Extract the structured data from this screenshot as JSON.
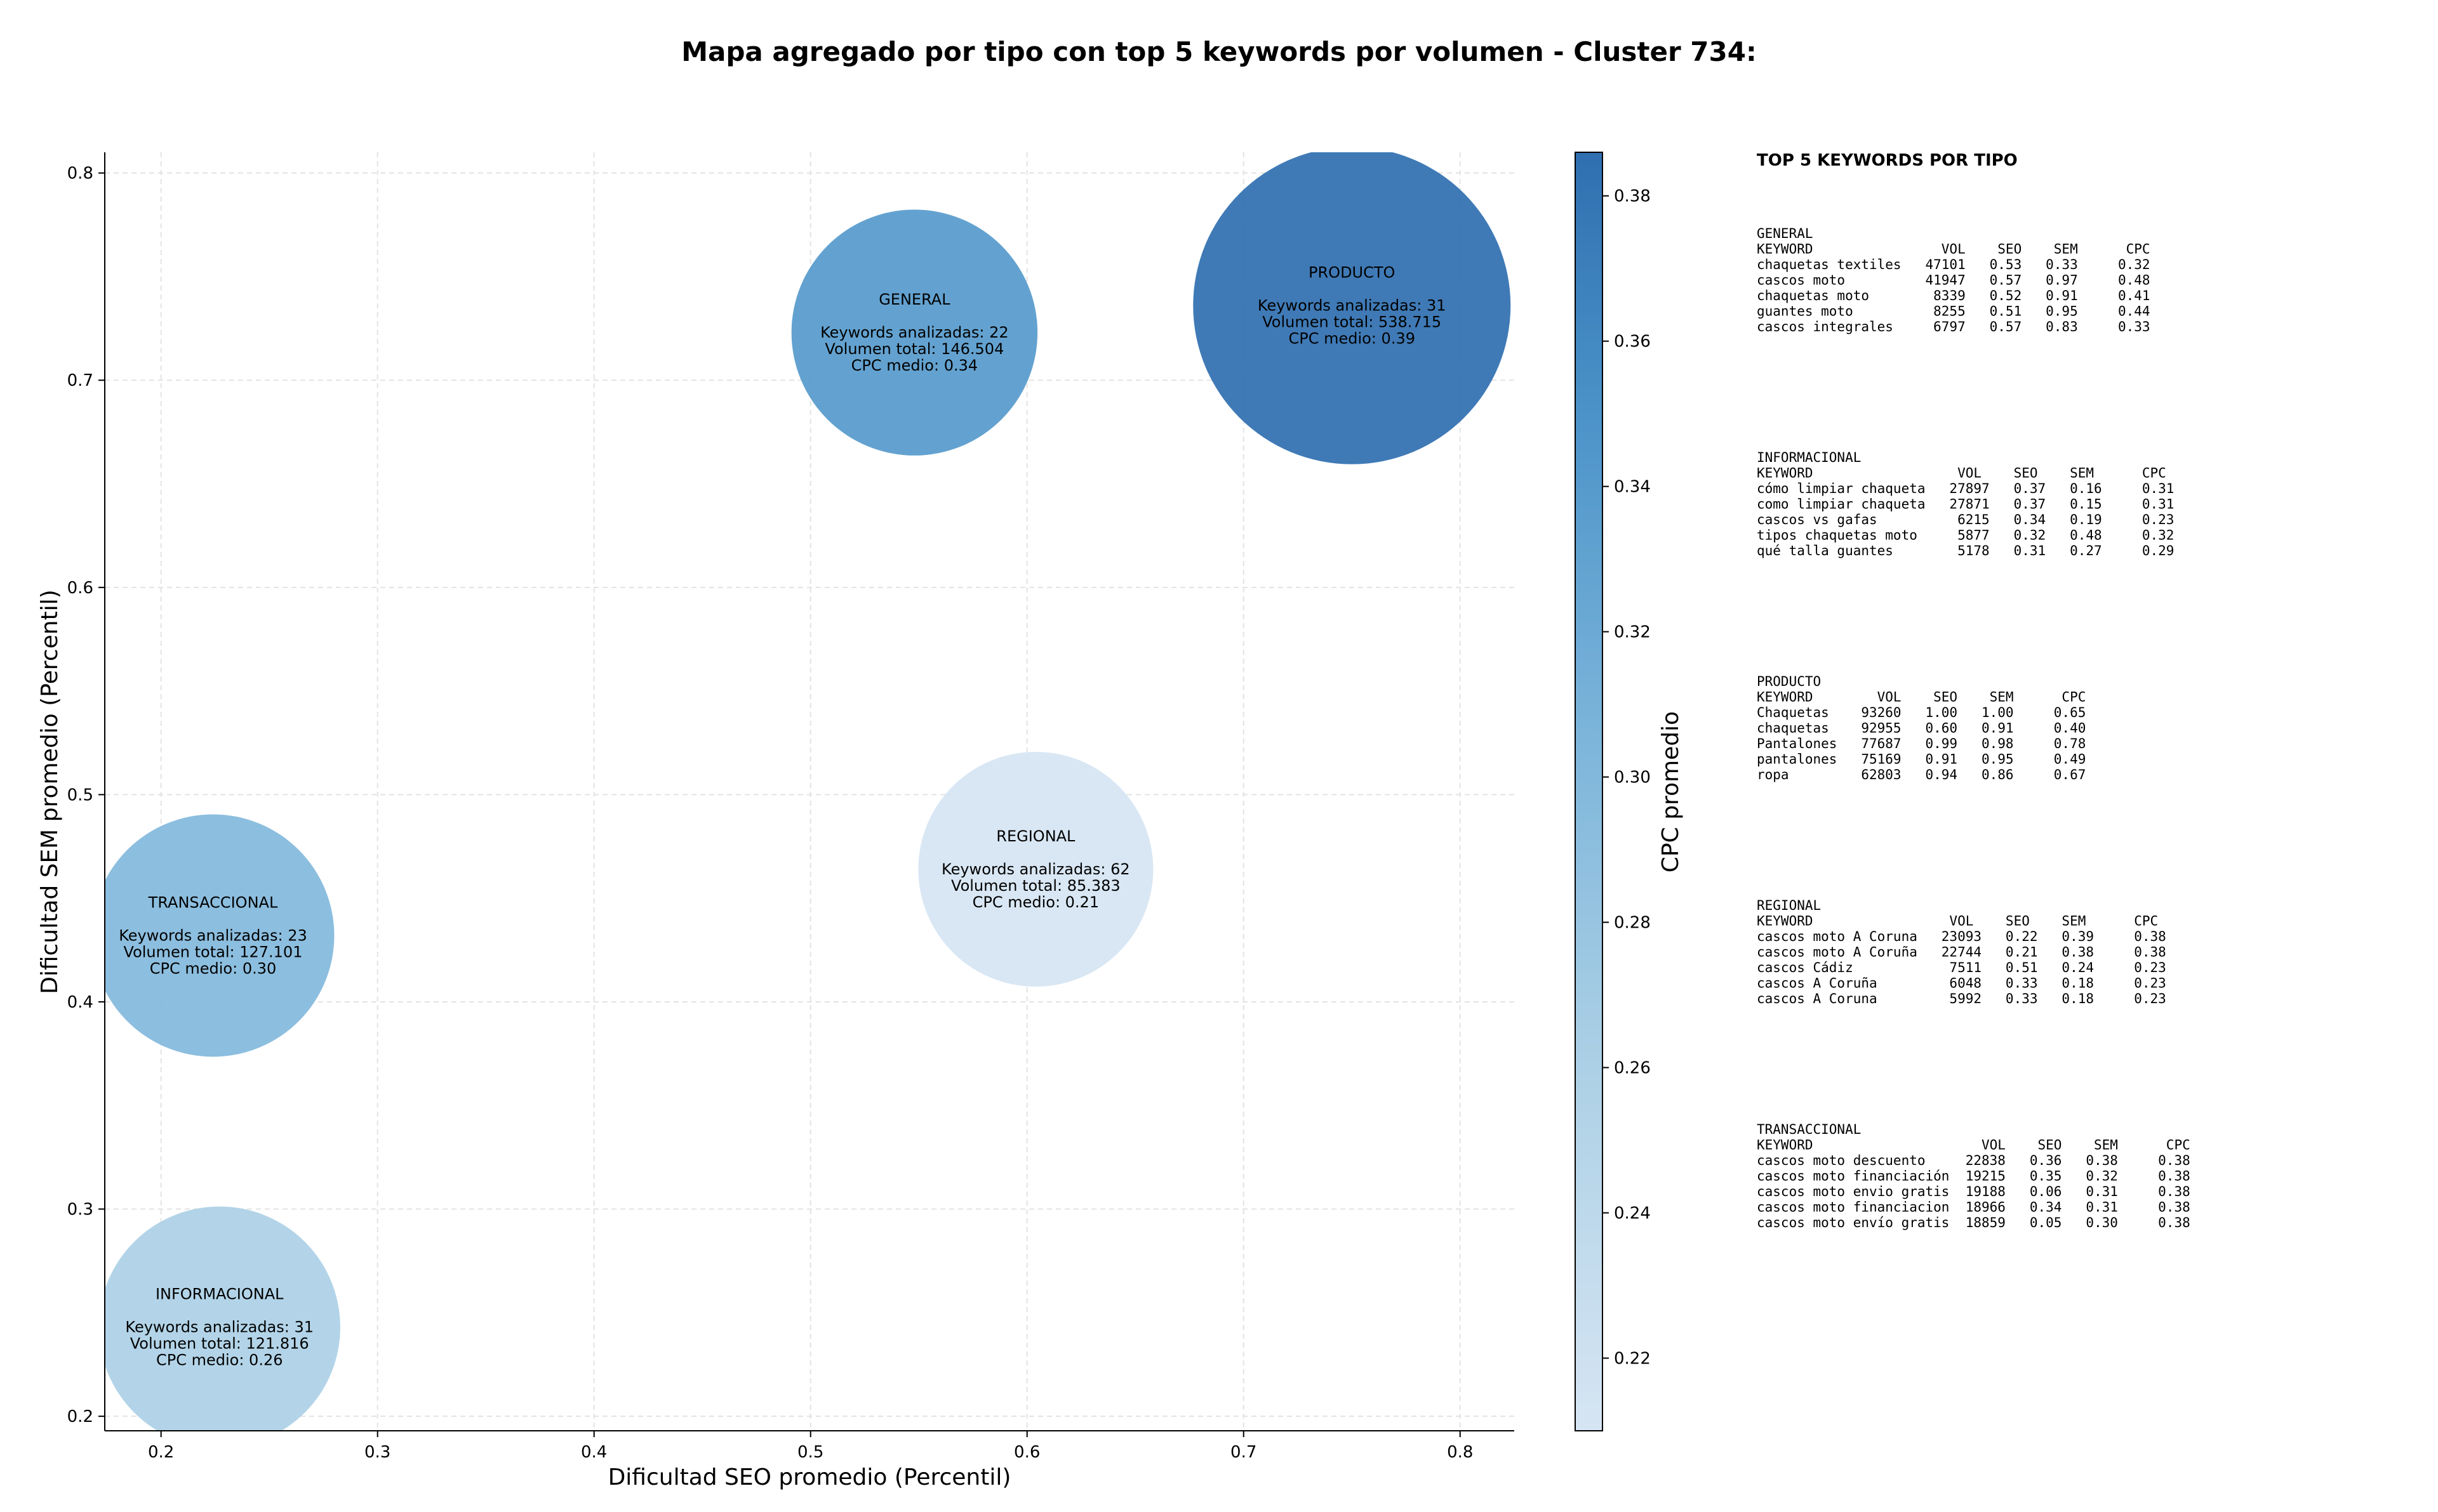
{
  "chart_data": {
    "type": "scatter",
    "title": "Mapa agregado por tipo con top 5 keywords por volumen - Cluster 734:",
    "xlabel": "Dificultad SEO promedio (Percentil)",
    "ylabel": "Dificultad SEM promedio (Percentil)",
    "xlim": [
      0.174,
      0.825
    ],
    "ylim": [
      0.193,
      0.81
    ],
    "xticks": [
      "0.2",
      "0.3",
      "0.4",
      "0.5",
      "0.6",
      "0.7",
      "0.8"
    ],
    "yticks": [
      "0.2",
      "0.3",
      "0.4",
      "0.5",
      "0.6",
      "0.7",
      "0.8"
    ],
    "grid": true,
    "colorbar": {
      "label": "CPC promedio",
      "range": [
        0.21,
        0.386
      ],
      "ticks": [
        "0.22",
        "0.24",
        "0.26",
        "0.28",
        "0.30",
        "0.32",
        "0.34",
        "0.36",
        "0.38"
      ]
    },
    "bubbles": [
      {
        "name": "GENERAL",
        "x": 0.548,
        "y": 0.723,
        "keywords_label": "Keywords analizadas: 22",
        "volume_label": "Volumen total: 146.504",
        "cpc_label": "CPC medio: 0.34",
        "volume": 146504,
        "cpc": 0.34
      },
      {
        "name": "PRODUCTO",
        "x": 0.75,
        "y": 0.736,
        "keywords_label": "Keywords analizadas: 31",
        "volume_label": "Volumen total: 538.715",
        "cpc_label": "CPC medio: 0.39",
        "volume": 538715,
        "cpc": 0.386
      },
      {
        "name": "REGIONAL",
        "x": 0.604,
        "y": 0.464,
        "keywords_label": "Keywords analizadas: 62",
        "volume_label": "Volumen total: 85.383",
        "cpc_label": "CPC medio: 0.21",
        "volume": 85383,
        "cpc": 0.21
      },
      {
        "name": "TRANSACCIONAL",
        "x": 0.224,
        "y": 0.432,
        "keywords_label": "Keywords analizadas: 23",
        "volume_label": "Volumen total: 127.101",
        "cpc_label": "CPC medio: 0.30",
        "volume": 127101,
        "cpc": 0.3
      },
      {
        "name": "INFORMACIONAL",
        "x": 0.227,
        "y": 0.243,
        "keywords_label": "Keywords analizadas: 31",
        "volume_label": "Volumen total: 121.816",
        "cpc_label": "CPC medio: 0.26",
        "volume": 121816,
        "cpc": 0.26
      }
    ]
  },
  "keyword_table": {
    "heading": "TOP 5 KEYWORDS POR TIPO",
    "sections": [
      {
        "lines": [
          "GENERAL",
          "KEYWORD                VOL    SEO    SEM      CPC",
          "chaquetas textiles   47101   0.53   0.33     0.32",
          "cascos moto          41947   0.57   0.97     0.48",
          "chaquetas moto        8339   0.52   0.91     0.41",
          "guantes moto          8255   0.51   0.95     0.44",
          "cascos integrales     6797   0.57   0.83     0.33"
        ]
      },
      {
        "lines": [
          "INFORMACIONAL",
          "KEYWORD                  VOL    SEO    SEM      CPC",
          "cómo limpiar chaqueta   27897   0.37   0.16     0.31",
          "como limpiar chaqueta   27871   0.37   0.15     0.31",
          "cascos vs gafas          6215   0.34   0.19     0.23",
          "tipos chaquetas moto     5877   0.32   0.48     0.32",
          "qué talla guantes        5178   0.31   0.27     0.29"
        ]
      },
      {
        "lines": [
          "PRODUCTO",
          "KEYWORD        VOL    SEO    SEM      CPC",
          "Chaquetas    93260   1.00   1.00     0.65",
          "chaquetas    92955   0.60   0.91     0.40",
          "Pantalones   77687   0.99   0.98     0.78",
          "pantalones   75169   0.91   0.95     0.49",
          "ropa         62803   0.94   0.86     0.67"
        ]
      },
      {
        "lines": [
          "REGIONAL",
          "KEYWORD                 VOL    SEO    SEM      CPC",
          "cascos moto A Coruna   23093   0.22   0.39     0.38",
          "cascos moto A Coruña   22744   0.21   0.38     0.38",
          "cascos Cádiz            7511   0.51   0.24     0.23",
          "cascos A Coruña         6048   0.33   0.18     0.23",
          "cascos A Coruna         5992   0.33   0.18     0.23"
        ]
      },
      {
        "lines": [
          "TRANSACCIONAL",
          "KEYWORD                     VOL    SEO    SEM      CPC",
          "cascos moto descuento     22838   0.36   0.38     0.38",
          "cascos moto financiación  19215   0.35   0.32     0.38",
          "cascos moto envio gratis  19188   0.06   0.31     0.38",
          "cascos moto financiacion  18966   0.34   0.31     0.38",
          "cascos moto envío gratis  18859   0.05   0.30     0.38"
        ]
      }
    ]
  }
}
